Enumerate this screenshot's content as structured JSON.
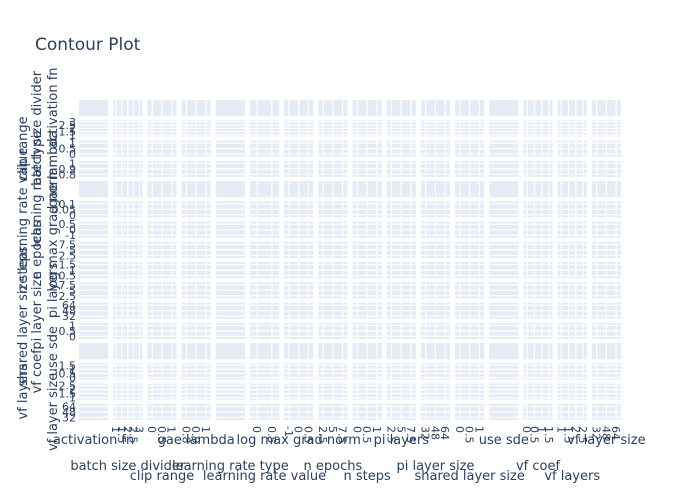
{
  "chart_data": {
    "type": "contour",
    "title": "Contour Plot",
    "parameters": [
      "activation fn",
      "batch size divider",
      "clip range",
      "gae lambda",
      "learning rate type",
      "learning rate value",
      "log max grad norm",
      "n epochs",
      "n steps",
      "pi layers",
      "pi layer size",
      "shared layer size",
      "use sde",
      "vf coef",
      "vf layers",
      "vf layer size"
    ],
    "x_axis_titles": [
      "activation fn",
      "batch size divider",
      "clip range",
      "gae lambda",
      "learning rate type",
      "learning rate value",
      "log max grad norm",
      "n epochs",
      "n steps",
      "pi layers",
      "pi layer size",
      "shared layer size",
      "use sde",
      "vf coef",
      "vf layers",
      "vf layer size"
    ],
    "y_axis_titles": [
      "activation fn",
      "batch size divider",
      "clip range",
      "gae lambda",
      "learning rate type",
      "learning rate value",
      "log max grad norm",
      "n epochs",
      "n steps",
      "pi layers",
      "pi layer size",
      "shared layer size",
      "use sde",
      "vf coef",
      "vf layers",
      "vf layer size"
    ],
    "x_tick_labels": [
      [],
      [
        "1",
        "1.5",
        "2",
        "2.5",
        "3"
      ],
      [
        "0",
        "0.5",
        "1"
      ],
      [
        "0.8",
        "0.9",
        "1"
      ],
      [],
      [
        "0",
        "0.5"
      ],
      [
        "-1",
        "0",
        "0.5"
      ],
      [
        "2.5",
        "5",
        "7.5"
      ],
      [
        "0",
        "0.5",
        "1"
      ],
      [
        "2.5",
        "5",
        "7.5"
      ],
      [
        "32",
        "48",
        "64"
      ],
      [
        "0",
        "0.5",
        "1"
      ],
      [],
      [
        "0",
        "0.5",
        "1",
        "1.5"
      ],
      [
        "1",
        "1.5",
        "2",
        "2.5"
      ],
      [
        "32",
        "48",
        "64"
      ]
    ],
    "y_tick_labels": [
      [],
      [
        "3",
        "2.5",
        "2",
        "1.5",
        "1"
      ],
      [
        "1",
        "0.5",
        "0"
      ],
      [
        "1",
        "0.9",
        "0.8"
      ],
      [],
      [
        "0.1",
        "0.05",
        "0"
      ],
      [
        "0.5",
        "0",
        "-1"
      ],
      [
        "7.5",
        "5",
        "2.5"
      ],
      [
        "1.5",
        "1",
        "0.5"
      ],
      [
        "7.5",
        "5",
        "2.5"
      ],
      [
        "64",
        "48",
        "32"
      ],
      [
        "1",
        "0.5",
        "0"
      ],
      [],
      [
        "1.5",
        "1",
        "0.5",
        "0"
      ],
      [
        "2.5",
        "2",
        "1.5",
        "1"
      ],
      [
        "64",
        "48",
        "32"
      ]
    ],
    "panel_style": "empty grid cells (no contour fill rendered)",
    "panel_background": "#e5ecf6",
    "grid_color": "#ffffff",
    "text_color": "#2a3f5f",
    "legend": "none"
  }
}
